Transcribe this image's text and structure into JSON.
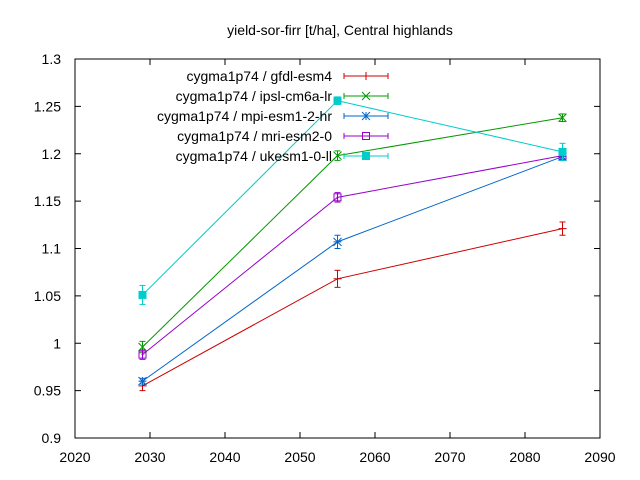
{
  "chart_data": {
    "type": "line",
    "title": "yield-sor-firr [t/ha], Central highlands",
    "xlabel": "",
    "ylabel": "",
    "xlim": [
      2020,
      2090
    ],
    "ylim": [
      0.9,
      1.3
    ],
    "xticks": [
      2020,
      2030,
      2040,
      2050,
      2060,
      2070,
      2080,
      2090
    ],
    "yticks": [
      0.9,
      0.95,
      1,
      1.05,
      1.1,
      1.15,
      1.2,
      1.25,
      1.3
    ],
    "grid": false,
    "legend_position": "top-left",
    "x": [
      2029,
      2055,
      2085
    ],
    "series": [
      {
        "name": "cygma1p74 / gfdl-esm4",
        "color": "#cc0000",
        "marker": "plus",
        "values": [
          0.955,
          1.068,
          1.121
        ],
        "errors": [
          0.005,
          0.009,
          0.007
        ]
      },
      {
        "name": "cygma1p74 / ipsl-cm6a-lr",
        "color": "#009900",
        "marker": "cross",
        "values": [
          0.996,
          1.198,
          1.238
        ],
        "errors": [
          0.006,
          0.005,
          0.004
        ]
      },
      {
        "name": "cygma1p74 / mpi-esm1-2-hr",
        "color": "#0066cc",
        "marker": "star",
        "values": [
          0.96,
          1.107,
          1.197
        ],
        "errors": [
          0.003,
          0.007,
          0.004
        ]
      },
      {
        "name": "cygma1p74 / mri-esm2-0",
        "color": "#9900cc",
        "marker": "open-square",
        "values": [
          0.988,
          1.154,
          1.198
        ],
        "errors": [
          0.005,
          0.005,
          0.004
        ]
      },
      {
        "name": "cygma1p74 / ukesm1-0-ll",
        "color": "#00cccc",
        "marker": "filled-square",
        "values": [
          1.051,
          1.256,
          1.202
        ],
        "errors": [
          0.01,
          0.004,
          0.009
        ]
      }
    ]
  }
}
